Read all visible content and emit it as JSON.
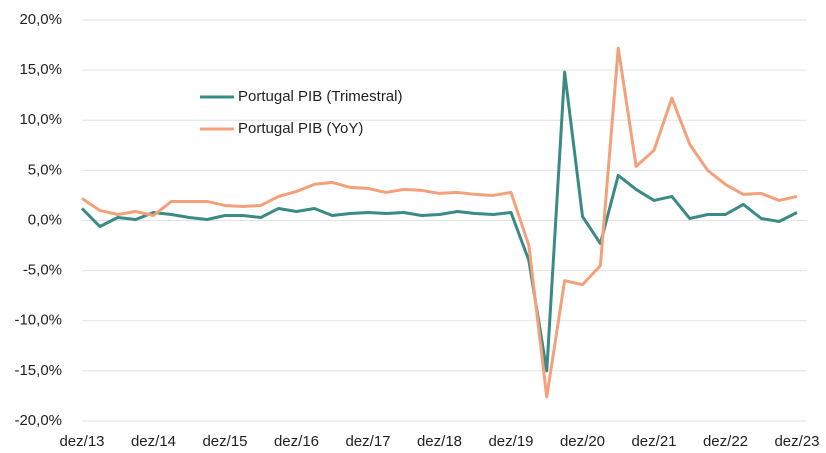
{
  "chart_data": {
    "type": "line",
    "categories": [
      "dez/13",
      null,
      null,
      null,
      "dez/14",
      null,
      null,
      null,
      "dez/15",
      null,
      null,
      null,
      "dez/16",
      null,
      null,
      null,
      "dez/17",
      null,
      null,
      null,
      "dez/18",
      null,
      null,
      null,
      "dez/19",
      null,
      null,
      null,
      "dez/20",
      null,
      null,
      null,
      "dez/21",
      null,
      null,
      null,
      "dez/22",
      null,
      null,
      null,
      "dez/23"
    ],
    "series": [
      {
        "name": "Portugal PIB (Trimestral)",
        "color": "#3a8a85",
        "values": [
          1.2,
          -0.6,
          0.3,
          0.1,
          0.8,
          0.6,
          0.3,
          0.1,
          0.5,
          0.5,
          0.3,
          1.2,
          0.9,
          1.2,
          0.5,
          0.7,
          0.8,
          0.7,
          0.8,
          0.5,
          0.6,
          0.9,
          0.7,
          0.6,
          0.8,
          -4.0,
          -15.0,
          14.8,
          0.4,
          -2.3,
          4.5,
          3.1,
          2.0,
          2.4,
          0.2,
          0.6,
          0.6,
          1.6,
          0.2,
          -0.1,
          0.8
        ]
      },
      {
        "name": "Portugal PIB (YoY)",
        "color": "#f4a07a",
        "values": [
          2.2,
          1.0,
          0.6,
          0.9,
          0.5,
          1.9,
          1.9,
          1.9,
          1.5,
          1.4,
          1.5,
          2.4,
          2.9,
          3.6,
          3.8,
          3.3,
          3.2,
          2.8,
          3.1,
          3.0,
          2.7,
          2.8,
          2.6,
          2.5,
          2.8,
          -2.5,
          -17.6,
          -6.0,
          -6.4,
          -4.5,
          17.2,
          5.4,
          7.0,
          12.2,
          7.6,
          5.0,
          3.6,
          2.6,
          2.7,
          2.0,
          2.4
        ]
      }
    ],
    "ylim": [
      -20,
      20
    ],
    "yticks": [
      {
        "value": -20,
        "label": "-20,0%"
      },
      {
        "value": -15,
        "label": "-15,0%"
      },
      {
        "value": -10,
        "label": "-10,0%"
      },
      {
        "value": -5,
        "label": "-5,0%"
      },
      {
        "value": 0,
        "label": "0,0%"
      },
      {
        "value": 5,
        "label": "5,0%"
      },
      {
        "value": 10,
        "label": "10,0%"
      },
      {
        "value": 15,
        "label": "15,0%"
      },
      {
        "value": 20,
        "label": "20,0%"
      }
    ],
    "grid": true,
    "legend": "upper left"
  }
}
